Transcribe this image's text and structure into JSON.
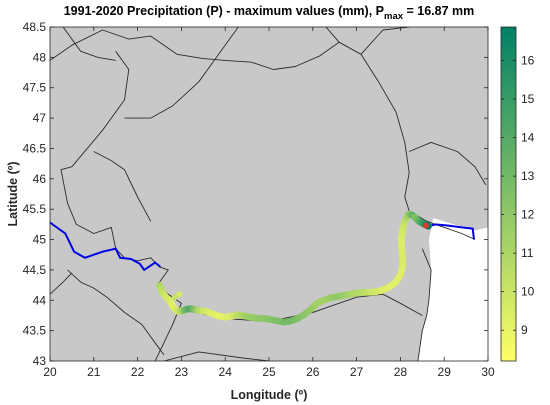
{
  "figure": {
    "title_main": "1991-2020 Precipitation (P) - maximum values (mm), P",
    "title_sub": "max",
    "title_tail": " = 16.87 mm",
    "xlabel": "Longitude (º)",
    "ylabel": "Latitude (º)"
  },
  "chart_data": {
    "type": "map",
    "xlim": [
      20,
      30
    ],
    "ylim": [
      43,
      48.5
    ],
    "x_ticks": [
      "20",
      "21",
      "22",
      "23",
      "24",
      "25",
      "26",
      "27",
      "28",
      "29",
      "30"
    ],
    "y_ticks": [
      "43",
      "43.5",
      "44",
      "44.5",
      "45",
      "45.5",
      "46",
      "46.5",
      "47",
      "47.5",
      "48",
      "48.5"
    ],
    "grid": false,
    "colors": {
      "land": "#c8c8c8",
      "sea": "#ffffff",
      "borders": "#2b2b2b",
      "river_line": "#0000e6",
      "axes": "#262626"
    },
    "colorbar": {
      "min": 8.2,
      "max": 16.87,
      "ticks": [
        "9",
        "10",
        "11",
        "12",
        "13",
        "14",
        "15",
        "16"
      ],
      "colormap": "summer-reversed (yellow to dark green)"
    },
    "borders": [
      [
        [
          20.0,
          47.95
        ],
        [
          20.5,
          48.2
        ],
        [
          21.2,
          48.45
        ],
        [
          21.8,
          48.3
        ],
        [
          22.3,
          48.35
        ],
        [
          22.9,
          48.05
        ],
        [
          23.5,
          47.98
        ],
        [
          24.0,
          47.95
        ],
        [
          24.6,
          47.92
        ],
        [
          25.1,
          47.8
        ],
        [
          25.6,
          47.85
        ],
        [
          26.15,
          48.02
        ],
        [
          26.6,
          48.25
        ],
        [
          27.1,
          48.05
        ],
        [
          27.5,
          47.6
        ],
        [
          27.9,
          47.1
        ],
        [
          28.1,
          46.6
        ],
        [
          28.2,
          46.1
        ],
        [
          28.1,
          45.7
        ],
        [
          28.2,
          45.47
        ]
      ],
      [
        [
          20.3,
          48.5
        ],
        [
          20.7,
          48.1
        ],
        [
          21.1,
          48.0
        ],
        [
          21.5,
          47.95
        ]
      ],
      [
        [
          21.5,
          48.1
        ],
        [
          21.8,
          47.8
        ],
        [
          21.7,
          47.3
        ],
        [
          21.2,
          46.8
        ],
        [
          20.5,
          46.2
        ],
        [
          20.25,
          46.15
        ]
      ],
      [
        [
          21.0,
          46.45
        ],
        [
          21.4,
          46.3
        ],
        [
          21.7,
          46.15
        ],
        [
          22.0,
          45.7
        ],
        [
          22.3,
          45.3
        ]
      ],
      [
        [
          24.3,
          48.5
        ],
        [
          23.8,
          48.0
        ],
        [
          23.4,
          47.6
        ],
        [
          22.8,
          47.2
        ],
        [
          22.3,
          47.0
        ],
        [
          21.7,
          47.0
        ]
      ],
      [
        [
          26.3,
          48.5
        ],
        [
          26.6,
          48.25
        ]
      ],
      [
        [
          27.1,
          48.05
        ],
        [
          27.6,
          48.45
        ],
        [
          28.2,
          48.5
        ]
      ],
      [
        [
          28.2,
          46.45
        ],
        [
          28.7,
          46.6
        ],
        [
          29.3,
          46.45
        ],
        [
          29.7,
          46.2
        ],
        [
          29.95,
          45.9
        ]
      ],
      [
        [
          28.2,
          45.47
        ],
        [
          28.6,
          45.3
        ],
        [
          29.0,
          45.2
        ],
        [
          29.4,
          45.1
        ],
        [
          29.7,
          45.0
        ]
      ],
      [
        [
          28.5,
          44.85
        ],
        [
          28.7,
          44.5
        ],
        [
          28.65,
          44.0
        ],
        [
          28.6,
          43.75
        ],
        [
          28.5,
          43.5
        ],
        [
          28.4,
          43.0
        ]
      ],
      [
        [
          20.25,
          46.15
        ],
        [
          20.4,
          45.6
        ],
        [
          20.6,
          45.25
        ],
        [
          21.0,
          45.1
        ],
        [
          21.4,
          45.2
        ],
        [
          21.5,
          44.85
        ],
        [
          21.7,
          44.7
        ],
        [
          22.0,
          44.65
        ],
        [
          22.3,
          44.7
        ],
        [
          22.5,
          44.55
        ],
        [
          22.7,
          44.5
        ],
        [
          22.45,
          44.25
        ],
        [
          22.7,
          44.1
        ],
        [
          23.0,
          43.95
        ],
        [
          22.8,
          43.6
        ],
        [
          22.6,
          43.3
        ],
        [
          22.4,
          43.0
        ]
      ],
      [
        [
          20.4,
          44.5
        ],
        [
          20.7,
          44.3
        ],
        [
          21.0,
          44.2
        ],
        [
          21.3,
          44.05
        ],
        [
          21.7,
          43.8
        ],
        [
          22.1,
          43.6
        ],
        [
          22.4,
          43.3
        ],
        [
          22.6,
          43.1
        ]
      ],
      [
        [
          23.0,
          43.85
        ],
        [
          24.0,
          43.7
        ],
        [
          25.0,
          43.65
        ],
        [
          26.0,
          43.8
        ],
        [
          27.0,
          44.05
        ],
        [
          27.6,
          44.1
        ]
      ],
      [
        [
          27.6,
          44.1
        ],
        [
          28.0,
          43.95
        ],
        [
          28.5,
          43.75
        ]
      ],
      [
        [
          22.6,
          43.0
        ],
        [
          23.4,
          43.15
        ],
        [
          24.4,
          43.05
        ],
        [
          25.0,
          43.0
        ]
      ],
      [
        [
          20.0,
          44.1
        ],
        [
          20.3,
          44.3
        ],
        [
          20.5,
          44.45
        ]
      ]
    ],
    "blue_line": [
      [
        20.0,
        45.28
      ],
      [
        20.35,
        45.1
      ],
      [
        20.55,
        44.8
      ],
      [
        20.8,
        44.7
      ],
      [
        21.0,
        44.75
      ],
      [
        21.2,
        44.8
      ],
      [
        21.5,
        44.85
      ],
      [
        21.6,
        44.7
      ],
      [
        21.85,
        44.68
      ],
      [
        22.05,
        44.6
      ],
      [
        22.15,
        44.5
      ],
      [
        22.4,
        44.62
      ],
      [
        22.52,
        44.55
      ]
    ],
    "blue_line_delta": [
      [
        28.55,
        45.2
      ],
      [
        28.8,
        45.25
      ],
      [
        29.1,
        45.23
      ],
      [
        29.4,
        45.2
      ],
      [
        29.65,
        45.18
      ],
      [
        29.68,
        45.0
      ]
    ],
    "precipitation_track": [
      [
        22.5,
        44.25,
        11.2
      ],
      [
        22.55,
        44.15,
        10.4
      ],
      [
        22.65,
        44.05,
        9.8
      ],
      [
        22.75,
        43.98,
        9.5
      ],
      [
        22.8,
        43.9,
        9.2
      ],
      [
        22.9,
        43.82,
        9.6
      ],
      [
        23.0,
        43.82,
        10.5
      ],
      [
        23.05,
        43.83,
        11.8
      ],
      [
        23.1,
        43.85,
        13.0
      ],
      [
        23.2,
        43.86,
        14.3
      ],
      [
        23.3,
        43.85,
        12.6
      ],
      [
        23.4,
        43.83,
        10.8
      ],
      [
        23.55,
        43.82,
        9.8
      ],
      [
        23.7,
        43.78,
        9.3
      ],
      [
        23.85,
        43.74,
        9.0
      ],
      [
        24.0,
        43.72,
        9.2
      ],
      [
        24.15,
        43.74,
        9.6
      ],
      [
        24.3,
        43.76,
        10.4
      ],
      [
        24.45,
        43.74,
        11.3
      ],
      [
        24.6,
        43.72,
        11.7
      ],
      [
        24.75,
        43.7,
        11.9
      ],
      [
        24.9,
        43.7,
        12.1
      ],
      [
        25.05,
        43.68,
        12.3
      ],
      [
        25.2,
        43.66,
        12.5
      ],
      [
        25.35,
        43.64,
        12.8
      ],
      [
        25.5,
        43.66,
        12.9
      ],
      [
        25.65,
        43.7,
        12.6
      ],
      [
        25.8,
        43.76,
        12.2
      ],
      [
        25.95,
        43.85,
        11.8
      ],
      [
        26.1,
        43.95,
        11.4
      ],
      [
        26.25,
        44.0,
        11.3
      ],
      [
        26.4,
        44.04,
        11.6
      ],
      [
        26.55,
        44.06,
        11.9
      ],
      [
        26.7,
        44.08,
        11.7
      ],
      [
        26.85,
        44.1,
        11.2
      ],
      [
        27.0,
        44.12,
        10.8
      ],
      [
        27.15,
        44.13,
        10.6
      ],
      [
        27.3,
        44.13,
        10.1
      ],
      [
        27.45,
        44.14,
        9.8
      ],
      [
        27.6,
        44.17,
        9.4
      ],
      [
        27.75,
        44.22,
        9.2
      ],
      [
        27.9,
        44.3,
        9.2
      ],
      [
        28.0,
        44.42,
        9.3
      ],
      [
        28.05,
        44.55,
        9.4
      ],
      [
        28.05,
        44.7,
        9.5
      ],
      [
        28.03,
        44.85,
        9.5
      ],
      [
        28.02,
        45.0,
        9.4
      ],
      [
        28.05,
        45.15,
        9.6
      ],
      [
        28.1,
        45.3,
        10.2
      ],
      [
        28.18,
        45.42,
        11.5
      ],
      [
        28.28,
        45.4,
        13.6
      ],
      [
        28.35,
        45.35,
        12.4
      ],
      [
        28.42,
        45.3,
        13.4
      ],
      [
        28.5,
        45.27,
        14.6
      ],
      [
        28.58,
        45.24,
        15.8
      ],
      [
        28.64,
        45.22,
        16.87
      ]
    ],
    "extra_marks": [
      [
        22.95,
        44.1,
        9.6
      ],
      [
        22.85,
        44.05,
        10.2
      ]
    ]
  }
}
